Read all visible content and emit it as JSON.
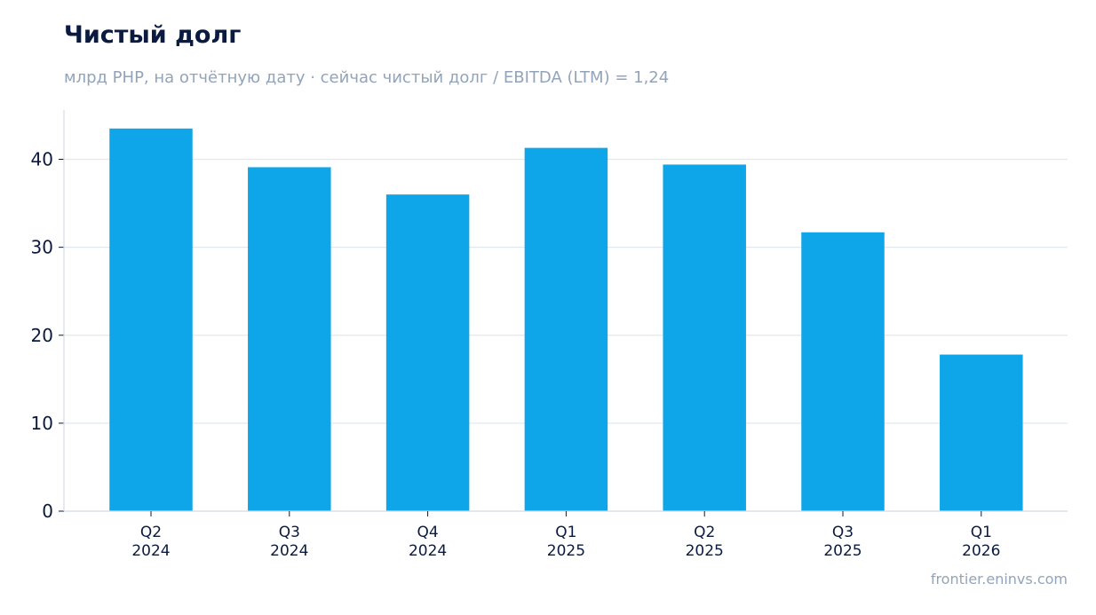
{
  "chart_data": {
    "type": "bar",
    "title": "Чистый долг",
    "subtitle": "млрд PHP, на отчётную дату · сейчас чистый долг / EBITDA (LTM) = 1,24",
    "categories": [
      [
        "Q2",
        "2024"
      ],
      [
        "Q3",
        "2024"
      ],
      [
        "Q4",
        "2024"
      ],
      [
        "Q1",
        "2025"
      ],
      [
        "Q2",
        "2025"
      ],
      [
        "Q3",
        "2025"
      ],
      [
        "Q1",
        "2026"
      ]
    ],
    "values": [
      43.5,
      39.1,
      36.0,
      41.3,
      39.4,
      31.7,
      17.8
    ],
    "ylim": [
      0,
      45.6
    ],
    "yticks": [
      0,
      10,
      20,
      30,
      40
    ],
    "grid": true,
    "bar_color": "#0ea5e9",
    "grid_color": "#e2e8f0",
    "axis_color": "#d5dbe3",
    "tick_text_color": "#0b1a3f",
    "source": "frontier.eninvs.com"
  }
}
